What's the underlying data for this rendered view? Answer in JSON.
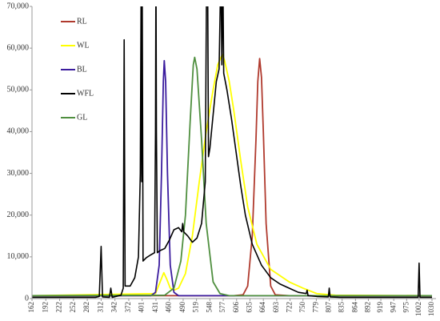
{
  "chart_data": {
    "type": "line",
    "xlim": [
      162,
      1030
    ],
    "xticks": [
      162,
      192,
      222,
      252,
      282,
      312,
      342,
      372,
      401,
      431,
      460,
      490,
      519,
      548,
      577,
      606,
      635,
      664,
      693,
      722,
      750,
      779,
      807,
      835,
      864,
      892,
      919,
      947,
      975,
      1002,
      1030
    ],
    "ylim": [
      0,
      70000
    ],
    "yticks": [
      0,
      {
        "value": 10000,
        "label": "10,000"
      },
      {
        "value": 20000,
        "label": "20,000"
      },
      {
        "value": 30000,
        "label": "30,000"
      },
      {
        "value": 40000,
        "label": "40,000"
      },
      {
        "value": 50000,
        "label": "50,000"
      },
      {
        "value": 60000,
        "label": "60,000"
      },
      {
        "value": 70000,
        "label": "70,000"
      }
    ],
    "grid": false,
    "legend": "upper left",
    "series": [
      {
        "name": "RL",
        "color": "#b03a2e",
        "x": [
          162,
          600,
          620,
          630,
          640,
          648,
          652,
          656,
          660,
          664,
          670,
          680,
          690,
          720,
          1030
        ],
        "values": [
          700,
          700,
          900,
          3000,
          15000,
          38000,
          52000,
          57500,
          53000,
          40000,
          18000,
          3000,
          900,
          700,
          700
        ]
      },
      {
        "name": "WL",
        "color": "#ffff00",
        "x": [
          162,
          430,
          440,
          448,
          455,
          462,
          470,
          480,
          495,
          510,
          525,
          540,
          555,
          565,
          575,
          580,
          590,
          600,
          615,
          630,
          650,
          680,
          720,
          750,
          780,
          820,
          1030
        ],
        "values": [
          700,
          1200,
          4000,
          6200,
          4500,
          2500,
          2000,
          2500,
          6000,
          15000,
          28000,
          40000,
          50000,
          56000,
          58500,
          57000,
          52000,
          45000,
          33000,
          22000,
          13000,
          7000,
          4000,
          2500,
          1200,
          800,
          700
        ]
      },
      {
        "name": "BL",
        "color": "#3b1c9e",
        "x": [
          162,
          420,
          430,
          438,
          443,
          447,
          449,
          452,
          456,
          462,
          470,
          480,
          1030
        ],
        "values": [
          700,
          700,
          1500,
          8000,
          30000,
          52000,
          57000,
          52000,
          30000,
          8000,
          1500,
          700,
          700
        ]
      },
      {
        "name": "WFL",
        "color": "#000000",
        "x": [
          162,
          300,
          308,
          312,
          315,
          330,
          333,
          336,
          355,
          360,
          362,
          364,
          375,
          385,
          393,
          397,
          399,
          400,
          401,
          403,
          410,
          420,
          428,
          430,
          431,
          432,
          434,
          440,
          450,
          460,
          470,
          480,
          487,
          489,
          491,
          500,
          510,
          520,
          530,
          538,
          541,
          543,
          545,
          548,
          555,
          562,
          568,
          572,
          574,
          576,
          578,
          585,
          595,
          605,
          615,
          625,
          640,
          660,
          680,
          700,
          720,
          740,
          757,
          759,
          761,
          780,
          805,
          807,
          809,
          830,
          860,
          1000,
          1002,
          1004,
          1030
        ],
        "values": [
          300,
          300,
          500,
          12500,
          400,
          300,
          2500,
          300,
          800,
          2500,
          62000,
          3000,
          3000,
          5000,
          10000,
          30000,
          80000,
          28000,
          80000,
          9000,
          9800,
          10500,
          11000,
          40000,
          80000,
          40000,
          11000,
          11500,
          12000,
          14000,
          16500,
          17000,
          16000,
          18000,
          16000,
          15000,
          13500,
          14500,
          18000,
          28000,
          80000,
          80000,
          34000,
          36000,
          44000,
          52000,
          55000,
          80000,
          56000,
          80000,
          54000,
          50000,
          43000,
          35000,
          27000,
          20000,
          13000,
          8000,
          5000,
          3500,
          2500,
          1500,
          1200,
          2000,
          700,
          500,
          400,
          2500,
          400,
          300,
          300,
          300,
          8500,
          300,
          300
        ]
      },
      {
        "name": "GL",
        "color": "#4f8f3f",
        "x": [
          162,
          450,
          470,
          485,
          495,
          505,
          512,
          515,
          520,
          530,
          540,
          555,
          570,
          590,
          1030
        ],
        "values": [
          700,
          800,
          2500,
          9000,
          20000,
          42000,
          56000,
          57800,
          55000,
          38000,
          18000,
          4000,
          1200,
          700,
          700
        ]
      }
    ]
  }
}
